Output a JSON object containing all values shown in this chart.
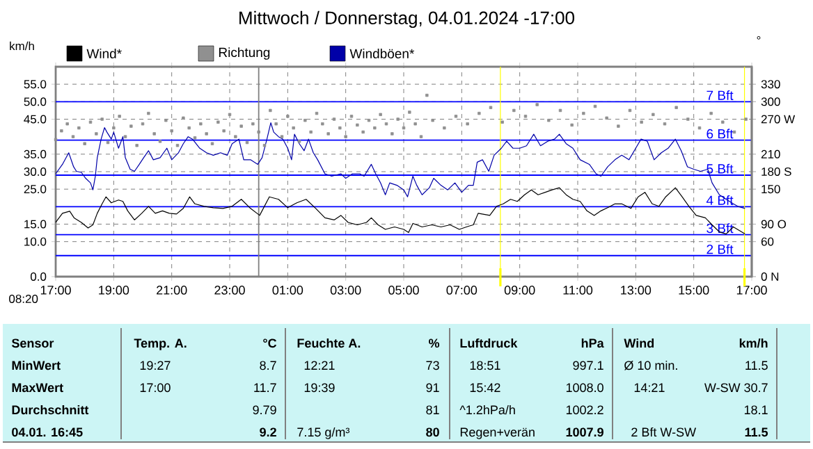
{
  "chart_data": {
    "type": "line",
    "title": "Mittwoch / Donnerstag, 04.01.2024 -17:00",
    "ylabel": "km/h",
    "y2label": "°",
    "legend": "top",
    "grid": true,
    "xlim": [
      "2024-01-03T17:00",
      "2024-01-04T17:00"
    ],
    "xticks": [
      {
        "value": "2024-01-03T17:00",
        "label": "17:00"
      },
      {
        "value": "2024-01-03T19:00",
        "label": "19:00"
      },
      {
        "value": "2024-01-03T21:00",
        "label": "21:00"
      },
      {
        "value": "2024-01-03T23:00",
        "label": "23:00"
      },
      {
        "value": "2024-01-04T01:00",
        "label": "01:00"
      },
      {
        "value": "2024-01-04T03:00",
        "label": "03:00"
      },
      {
        "value": "2024-01-04T05:00",
        "label": "05:00"
      },
      {
        "value": "2024-01-04T07:00",
        "label": "07:00"
      },
      {
        "value": "2024-01-04T09:00",
        "label": "09:00"
      },
      {
        "value": "2024-01-04T11:00",
        "label": "11:00"
      },
      {
        "value": "2024-01-04T13:00",
        "label": "13:00"
      },
      {
        "value": "2024-01-04T15:00",
        "label": "15:00"
      },
      {
        "value": "2024-01-04T17:00",
        "label": "17:00"
      }
    ],
    "ylim": [
      0,
      60
    ],
    "yticks": [
      {
        "value": 0,
        "label": "0.0"
      },
      {
        "value": 10,
        "label": "10.0"
      },
      {
        "value": 15,
        "label": "15.0"
      },
      {
        "value": 25,
        "label": "25.0"
      },
      {
        "value": 30,
        "label": "30.0"
      },
      {
        "value": 35,
        "label": "35.0"
      },
      {
        "value": 45,
        "label": "45.0"
      },
      {
        "value": 50,
        "label": "50.0"
      },
      {
        "value": 55,
        "label": "55.0"
      }
    ],
    "y2lim": [
      0,
      360
    ],
    "y2ticks": [
      {
        "value": 0,
        "label": "0 N"
      },
      60,
      {
        "value": 90,
        "label": "90 O"
      },
      150,
      {
        "value": 180,
        "label": "180 S"
      },
      210,
      {
        "value": 270,
        "label": "270 W"
      },
      300,
      330
    ],
    "series": [
      {
        "name": "Wind*",
        "color": "#000000",
        "x": [
          "2024-01-03T17:00",
          "2024-01-03T17:14",
          "2024-01-03T17:29",
          "2024-01-03T17:38",
          "2024-01-03T17:53",
          "2024-01-03T18:07",
          "2024-01-03T18:17",
          "2024-01-03T18:26",
          "2024-01-03T18:36",
          "2024-01-03T18:44",
          "2024-01-03T18:55",
          "2024-01-03T19:10",
          "2024-01-03T19:19",
          "2024-01-03T19:29",
          "2024-01-03T19:43",
          "2024-01-03T19:58",
          "2024-01-03T20:12",
          "2024-01-03T20:26",
          "2024-01-03T20:41",
          "2024-01-03T20:55",
          "2024-01-03T21:10",
          "2024-01-03T21:24",
          "2024-01-03T21:37",
          "2024-01-03T21:48",
          "2024-01-03T22:07",
          "2024-01-03T22:26",
          "2024-01-03T22:46",
          "2024-01-03T23:05",
          "2024-01-03T23:24",
          "2024-01-03T23:43",
          "2024-01-04T00:02",
          "2024-01-04T00:22",
          "2024-01-04T00:41",
          "2024-01-04T01:00",
          "2024-01-04T01:19",
          "2024-01-04T01:38",
          "2024-01-04T01:58",
          "2024-01-04T02:17",
          "2024-01-04T02:36",
          "2024-01-04T02:50",
          "2024-01-04T03:05",
          "2024-01-04T03:24",
          "2024-01-04T03:43",
          "2024-01-04T03:53",
          "2024-01-04T04:07",
          "2024-01-04T04:22",
          "2024-01-04T04:41",
          "2024-01-04T05:00",
          "2024-01-04T05:10",
          "2024-01-04T05:19",
          "2024-01-04T05:27",
          "2024-01-04T05:38",
          "2024-01-04T05:58",
          "2024-01-04T06:17",
          "2024-01-04T06:36",
          "2024-01-04T06:55",
          "2024-01-04T07:14",
          "2024-01-04T07:24",
          "2024-01-04T07:34",
          "2024-01-04T07:58",
          "2024-01-04T08:12",
          "2024-01-04T08:26",
          "2024-01-04T08:41",
          "2024-01-04T08:55",
          "2024-01-04T09:10",
          "2024-01-04T09:24",
          "2024-01-04T09:38",
          "2024-01-04T09:53",
          "2024-01-04T10:07",
          "2024-01-04T10:22",
          "2024-01-04T10:36",
          "2024-01-04T10:50",
          "2024-01-04T11:05",
          "2024-01-04T11:19",
          "2024-01-04T11:34",
          "2024-01-04T11:48",
          "2024-01-04T12:02",
          "2024-01-04T12:17",
          "2024-01-04T12:31",
          "2024-01-04T12:50",
          "2024-01-04T13:05",
          "2024-01-04T13:19",
          "2024-01-04T13:34",
          "2024-01-04T13:48",
          "2024-01-04T14:02",
          "2024-01-04T14:22",
          "2024-01-04T14:36",
          "2024-01-04T14:50",
          "2024-01-04T15:05",
          "2024-01-04T15:24",
          "2024-01-04T15:38",
          "2024-01-04T15:53",
          "2024-01-04T16:07",
          "2024-01-04T16:22",
          "2024-01-04T16:46"
        ],
        "values": [
          15.5,
          18.1,
          18.7,
          16.8,
          15.5,
          13.9,
          14.8,
          18.1,
          20.8,
          22.8,
          21.1,
          21.9,
          21.5,
          18.8,
          16.2,
          18.1,
          20.1,
          18.1,
          18.8,
          18.1,
          17.9,
          19.5,
          22.8,
          20.8,
          20.1,
          19.7,
          19.5,
          20.1,
          22.1,
          19.5,
          17.5,
          22.8,
          22.1,
          19.7,
          21.1,
          22.1,
          19.5,
          16.8,
          16.2,
          17.5,
          15.5,
          14.8,
          15.5,
          16.8,
          14.8,
          13.5,
          14.2,
          13.5,
          12.6,
          15.2,
          14.8,
          14.2,
          14.8,
          14.2,
          14.8,
          13.5,
          14.4,
          14.8,
          18.1,
          17.5,
          20.1,
          20.8,
          22.1,
          21.5,
          23.4,
          24.8,
          23.4,
          24.1,
          24.8,
          25.4,
          23.4,
          22.1,
          21.5,
          18.8,
          17.5,
          18.8,
          19.7,
          20.8,
          20.8,
          19.5,
          22.8,
          24.1,
          20.8,
          20.1,
          22.8,
          25.4,
          22.8,
          20.1,
          17.5,
          16.8,
          14.8,
          12.8,
          12.2,
          14.2,
          12.2
        ]
      },
      {
        "name": "Richtung",
        "type": "scatter",
        "axis": "y2",
        "marker": "square",
        "color": "#909090",
        "x": [
          "2024-01-03T17:00",
          "2024-01-03T17:12",
          "2024-01-03T17:24",
          "2024-01-03T17:36",
          "2024-01-03T17:48",
          "2024-01-03T18:00",
          "2024-01-03T18:12",
          "2024-01-03T18:24",
          "2024-01-03T18:36",
          "2024-01-03T18:48",
          "2024-01-03T19:00",
          "2024-01-03T19:12",
          "2024-01-03T19:24",
          "2024-01-03T19:36",
          "2024-01-03T19:48",
          "2024-01-03T20:00",
          "2024-01-03T20:12",
          "2024-01-03T20:24",
          "2024-01-03T20:36",
          "2024-01-03T20:48",
          "2024-01-03T21:00",
          "2024-01-03T21:12",
          "2024-01-03T21:24",
          "2024-01-03T21:36",
          "2024-01-03T21:48",
          "2024-01-03T22:00",
          "2024-01-03T22:12",
          "2024-01-03T22:24",
          "2024-01-03T22:36",
          "2024-01-03T22:48",
          "2024-01-03T23:00",
          "2024-01-03T23:12",
          "2024-01-03T23:24",
          "2024-01-03T23:36",
          "2024-01-03T23:48",
          "2024-01-04T00:00",
          "2024-01-04T00:12",
          "2024-01-04T00:24",
          "2024-01-04T00:36",
          "2024-01-04T00:48",
          "2024-01-04T01:00",
          "2024-01-04T01:12",
          "2024-01-04T01:24",
          "2024-01-04T01:36",
          "2024-01-04T01:48",
          "2024-01-04T02:00",
          "2024-01-04T02:12",
          "2024-01-04T02:24",
          "2024-01-04T02:36",
          "2024-01-04T02:48",
          "2024-01-04T03:00",
          "2024-01-04T03:12",
          "2024-01-04T03:24",
          "2024-01-04T03:36",
          "2024-01-04T03:48",
          "2024-01-04T04:00",
          "2024-01-04T04:12",
          "2024-01-04T04:24",
          "2024-01-04T04:36",
          "2024-01-04T04:48",
          "2024-01-04T05:00",
          "2024-01-04T05:12",
          "2024-01-04T05:24",
          "2024-01-04T05:36",
          "2024-01-04T05:48",
          "2024-01-04T06:00",
          "2024-01-04T06:24",
          "2024-01-04T06:48",
          "2024-01-04T07:12",
          "2024-01-04T07:36",
          "2024-01-04T08:00",
          "2024-01-04T08:24",
          "2024-01-04T08:48",
          "2024-01-04T09:12",
          "2024-01-04T09:36",
          "2024-01-04T10:00",
          "2024-01-04T10:24",
          "2024-01-04T10:48",
          "2024-01-04T11:12",
          "2024-01-04T11:36",
          "2024-01-04T12:00",
          "2024-01-04T12:24",
          "2024-01-04T12:48",
          "2024-01-04T13:12",
          "2024-01-04T13:36",
          "2024-01-04T14:00",
          "2024-01-04T14:24",
          "2024-01-04T14:48",
          "2024-01-04T15:12",
          "2024-01-04T15:36",
          "2024-01-04T16:00",
          "2024-01-04T16:24",
          "2024-01-04T16:48"
        ],
        "values": [
          235,
          250,
          262,
          240,
          255,
          228,
          265,
          245,
          270,
          230,
          255,
          275,
          240,
          258,
          225,
          262,
          280,
          245,
          232,
          268,
          250,
          225,
          272,
          255,
          238,
          262,
          245,
          228,
          265,
          250,
          278,
          240,
          258,
          230,
          262,
          248,
          225,
          285,
          262,
          240,
          275,
          255,
          232,
          268,
          248,
          280,
          262,
          245,
          270,
          255,
          240,
          275,
          260,
          248,
          268,
          255,
          278,
          262,
          245,
          270,
          255,
          282,
          262,
          240,
          311,
          268,
          255,
          275,
          262,
          280,
          290,
          265,
          285,
          275,
          295,
          268,
          285,
          260,
          280,
          292,
          272,
          258,
          285,
          265,
          278,
          262,
          290,
          270,
          255,
          280,
          265,
          248,
          270
        ]
      },
      {
        "name": "Windböen*",
        "color": "#0000a8",
        "x": [
          "2024-01-03T17:00",
          "2024-01-03T17:14",
          "2024-01-03T17:27",
          "2024-01-03T17:37",
          "2024-01-03T17:43",
          "2024-01-03T17:53",
          "2024-01-03T18:02",
          "2024-01-03T18:12",
          "2024-01-03T18:17",
          "2024-01-03T18:22",
          "2024-01-03T18:26",
          "2024-01-03T18:34",
          "2024-01-03T18:41",
          "2024-01-03T18:46",
          "2024-01-03T18:55",
          "2024-01-03T19:00",
          "2024-01-03T19:10",
          "2024-01-03T19:19",
          "2024-01-03T19:24",
          "2024-01-03T19:34",
          "2024-01-03T19:43",
          "2024-01-03T19:53",
          "2024-01-03T20:02",
          "2024-01-03T20:12",
          "2024-01-03T20:22",
          "2024-01-03T20:36",
          "2024-01-03T20:50",
          "2024-01-03T21:00",
          "2024-01-03T21:14",
          "2024-01-03T21:24",
          "2024-01-03T21:34",
          "2024-01-03T21:43",
          "2024-01-03T21:58",
          "2024-01-03T22:12",
          "2024-01-03T22:26",
          "2024-01-03T22:41",
          "2024-01-03T22:55",
          "2024-01-03T23:05",
          "2024-01-03T23:19",
          "2024-01-03T23:29",
          "2024-01-03T23:43",
          "2024-01-03T23:58",
          "2024-01-04T00:07",
          "2024-01-04T00:17",
          "2024-01-04T00:25",
          "2024-01-04T00:31",
          "2024-01-04T00:41",
          "2024-01-04T00:50",
          "2024-01-04T01:00",
          "2024-01-04T01:08",
          "2024-01-04T01:14",
          "2024-01-04T01:24",
          "2024-01-04T01:34",
          "2024-01-04T01:43",
          "2024-01-04T01:53",
          "2024-01-04T02:02",
          "2024-01-04T02:17",
          "2024-01-04T02:31",
          "2024-01-04T02:50",
          "2024-01-04T03:00",
          "2024-01-04T03:14",
          "2024-01-04T03:29",
          "2024-01-04T03:38",
          "2024-01-04T03:53",
          "2024-01-04T04:02",
          "2024-01-04T04:12",
          "2024-01-04T04:22",
          "2024-01-04T04:31",
          "2024-01-04T04:46",
          "2024-01-04T05:00",
          "2024-01-04T05:08",
          "2024-01-04T05:19",
          "2024-01-04T05:27",
          "2024-01-04T05:38",
          "2024-01-04T05:53",
          "2024-01-04T06:02",
          "2024-01-04T06:17",
          "2024-01-04T06:31",
          "2024-01-04T06:46",
          "2024-01-04T07:00",
          "2024-01-04T07:14",
          "2024-01-04T07:24",
          "2024-01-04T07:32",
          "2024-01-04T07:43",
          "2024-01-04T07:56",
          "2024-01-04T08:07",
          "2024-01-04T08:22",
          "2024-01-04T08:33",
          "2024-01-04T08:46",
          "2024-01-04T09:00",
          "2024-01-04T09:14",
          "2024-01-04T09:29",
          "2024-01-04T09:43",
          "2024-01-04T09:58",
          "2024-01-04T10:12",
          "2024-01-04T10:22",
          "2024-01-04T10:36",
          "2024-01-04T10:50",
          "2024-01-04T11:05",
          "2024-01-04T11:24",
          "2024-01-04T11:38",
          "2024-01-04T11:48",
          "2024-01-04T12:02",
          "2024-01-04T12:17",
          "2024-01-04T12:31",
          "2024-01-04T12:46",
          "2024-01-04T13:00",
          "2024-01-04T13:11",
          "2024-01-04T13:24",
          "2024-01-04T13:38",
          "2024-01-04T13:53",
          "2024-01-04T14:07",
          "2024-01-04T14:22",
          "2024-01-04T14:34",
          "2024-01-04T14:47",
          "2024-01-04T15:00",
          "2024-01-04T15:14",
          "2024-01-04T15:29",
          "2024-01-04T15:38",
          "2024-01-04T15:53",
          "2024-01-04T16:07",
          "2024-01-04T16:22",
          "2024-01-04T16:31",
          "2024-01-04T16:46"
        ],
        "values": [
          29.4,
          32.1,
          35.4,
          31.4,
          30.1,
          29.8,
          28.1,
          26.8,
          24.8,
          28.7,
          34.0,
          39.3,
          42.6,
          41.3,
          39.3,
          41.3,
          36.7,
          40.0,
          34.0,
          30.7,
          30.1,
          32.1,
          34.0,
          36.0,
          33.4,
          34.0,
          36.7,
          33.4,
          35.4,
          38.0,
          40.0,
          39.3,
          36.7,
          35.4,
          34.7,
          35.4,
          34.7,
          38.0,
          39.3,
          33.4,
          33.4,
          32.1,
          34.0,
          39.3,
          44.0,
          41.3,
          40.0,
          39.3,
          36.7,
          33.4,
          40.7,
          38.0,
          36.0,
          39.3,
          35.4,
          33.4,
          29.4,
          28.7,
          29.4,
          28.1,
          29.4,
          29.4,
          28.7,
          32.1,
          29.4,
          26.8,
          23.4,
          26.8,
          26.1,
          24.8,
          22.8,
          28.7,
          26.1,
          23.4,
          25.4,
          28.1,
          26.1,
          24.8,
          26.8,
          24.1,
          26.1,
          26.1,
          32.7,
          33.4,
          30.1,
          34.7,
          36.7,
          38.7,
          36.7,
          36.7,
          37.4,
          40.7,
          37.4,
          38.7,
          39.3,
          40.7,
          38.0,
          36.7,
          33.4,
          32.1,
          29.4,
          28.7,
          31.4,
          33.4,
          34.7,
          33.4,
          36.7,
          39.3,
          38.7,
          33.4,
          35.4,
          36.7,
          39.3,
          36.0,
          31.4,
          30.7,
          30.1,
          30.7,
          26.8,
          23.4,
          22.1,
          20.8,
          20.1,
          19.5
        ]
      }
    ],
    "ref_lines": [
      {
        "axis": "y",
        "value": 6,
        "label": "2 Bft",
        "color": "#0000ff"
      },
      {
        "axis": "y",
        "value": 12,
        "label": "3 Bft",
        "color": "#0000ff"
      },
      {
        "axis": "y",
        "value": 20,
        "label": "4 Bft",
        "color": "#0000ff"
      },
      {
        "axis": "y",
        "value": 29,
        "label": "5 Bft",
        "color": "#0000ff"
      },
      {
        "axis": "y",
        "value": 39,
        "label": "6 Bft",
        "color": "#0000ff"
      },
      {
        "axis": "y",
        "value": 50,
        "label": "7 Bft",
        "color": "#0000ff"
      },
      {
        "axis": "x",
        "value": "2024-01-04T00:00",
        "color": "#808080",
        "line_style": "solid"
      },
      {
        "axis": "x",
        "value": "2024-01-04T08:20",
        "color": "#ffff00"
      },
      {
        "axis": "x",
        "value": "2024-01-04T16:45",
        "color": "#ffff00"
      }
    ],
    "annotations": [
      "08:20",
      "Sensor",
      "Temp. A.",
      "°C",
      "Feuchte A.",
      "%",
      "Luftdruck",
      "hPa",
      "Wind",
      "km/h",
      "MinWert",
      "19:27",
      "8.7",
      "12:21",
      "73",
      "18:51",
      "997.1",
      "Ø 10 min.",
      "11.5",
      "MaxWert",
      "17:00",
      "11.7",
      "19:39",
      "91",
      "15:42",
      "1008.0",
      "14:21",
      "W-SW 30.7",
      "Durchschnitt",
      "9.79",
      "81",
      "^1.2hPa/h",
      "1002.2",
      "18.1",
      "04.01. 16:45",
      "9.2",
      "7.15 g/m³",
      "80",
      "Regen+verän",
      "1007.9",
      "2 Bft W-SW",
      "11.5"
    ]
  }
}
